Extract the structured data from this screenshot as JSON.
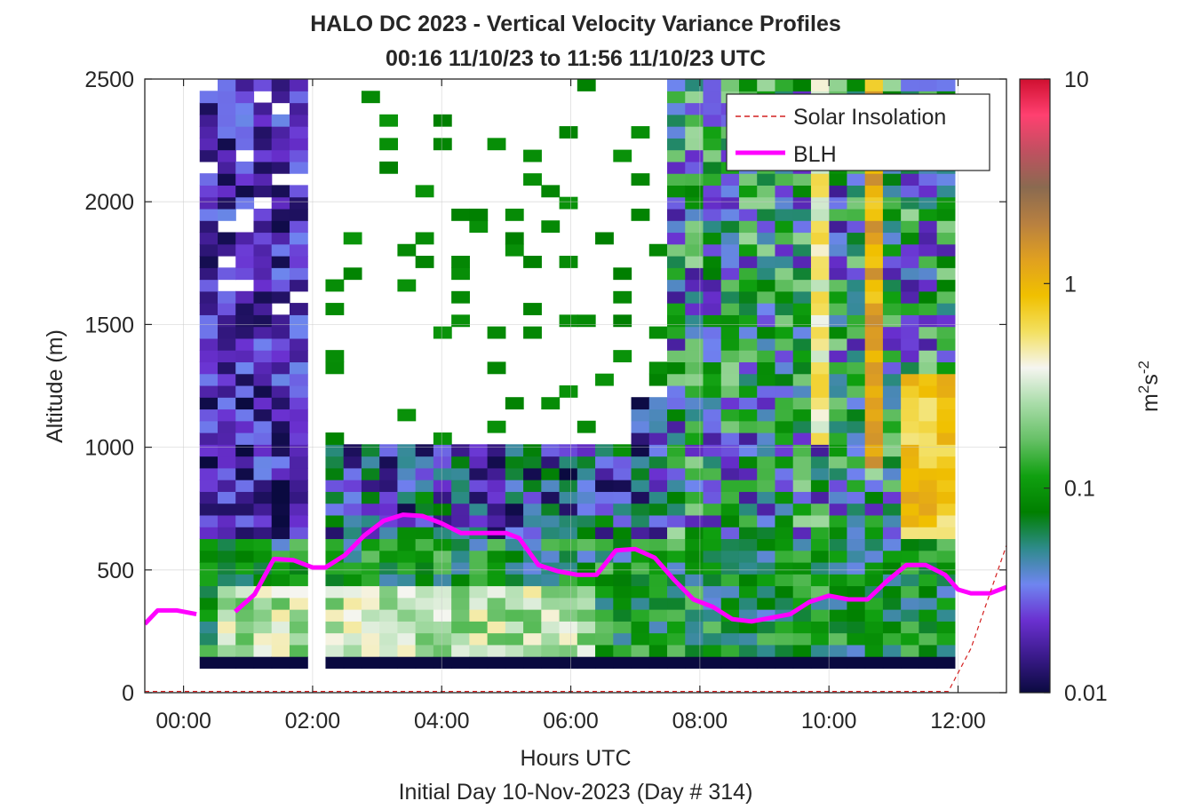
{
  "chart_data": {
    "type": "heatmap",
    "title": "HALO DC 2023 - Vertical Velocity Variance Profiles",
    "subtitle": "00:16 11/10/23 to 11:56 11/10/23  UTC",
    "xlabel": "Hours UTC",
    "xlabel2": "Initial Day 10-Nov-2023 (Day # 314)",
    "ylabel": "Altitude (m)",
    "xlim_hours": [
      -0.6,
      12.75
    ],
    "ylim": [
      0,
      2500
    ],
    "x_ticks": [
      0,
      2,
      4,
      6,
      8,
      10,
      12
    ],
    "x_tick_labels": [
      "00:00",
      "02:00",
      "04:00",
      "06:00",
      "08:00",
      "10:00",
      "12:00"
    ],
    "y_ticks": [
      0,
      500,
      1000,
      1500,
      2000,
      2500
    ],
    "y_tick_labels": [
      "0",
      "500",
      "1000",
      "1500",
      "2000",
      "2500"
    ],
    "grid": true,
    "colorbar": {
      "label": "m²s⁻²",
      "scale": "log",
      "range": [
        0.01,
        10
      ],
      "tick_values": [
        0.01,
        0.1,
        1,
        10
      ],
      "tick_labels": [
        "0.01",
        "0.1",
        "1",
        "10"
      ],
      "colors": [
        "#0a0a40",
        "#3a1a8a",
        "#6a30d0",
        "#6f85f0",
        "#2e8b8b",
        "#007f00",
        "#10a010",
        "#66c066",
        "#a8dca8",
        "#f5f5f0",
        "#f3e060",
        "#f0c000",
        "#e0a020",
        "#b88040",
        "#8a6a50",
        "#c05060",
        "#ff4070",
        "#d01030"
      ]
    },
    "legend": {
      "placement": "top-right",
      "entries": [
        {
          "label": "Solar Insolation",
          "color": "#d42020",
          "style": "dashed"
        },
        {
          "label": "BLH",
          "color": "#ff00ff",
          "style": "solid"
        }
      ]
    },
    "series": [
      {
        "name": "BLH",
        "color": "#ff00ff",
        "x": [
          -0.6,
          -0.4,
          -0.1,
          0.2,
          0.5,
          0.8,
          1.1,
          1.4,
          1.7,
          2.0,
          2.2,
          2.5,
          2.8,
          3.1,
          3.4,
          3.7,
          4.0,
          4.3,
          4.7,
          5.0,
          5.2,
          5.5,
          5.8,
          6.1,
          6.4,
          6.7,
          7.0,
          7.3,
          7.6,
          7.9,
          8.2,
          8.5,
          8.8,
          9.1,
          9.4,
          9.7,
          10.0,
          10.3,
          10.6,
          10.9,
          11.2,
          11.5,
          11.8,
          12.0,
          12.2,
          12.5,
          12.75
        ],
        "y": [
          280,
          335,
          335,
          320,
          null,
          330,
          400,
          545,
          540,
          510,
          510,
          560,
          640,
          700,
          725,
          720,
          690,
          650,
          650,
          650,
          630,
          520,
          495,
          480,
          480,
          580,
          585,
          550,
          460,
          380,
          350,
          300,
          290,
          305,
          320,
          370,
          395,
          380,
          380,
          455,
          520,
          520,
          480,
          420,
          405,
          405,
          430
        ]
      },
      {
        "name": "Solar Insolation",
        "color": "#d42020",
        "x": [
          -0.6,
          11.85,
          12.2,
          12.75
        ],
        "y": [
          5,
          5,
          180,
          600
        ]
      }
    ],
    "heatmap_extent": {
      "x": [
        0.25,
        11.95
      ],
      "y": [
        100,
        2500
      ],
      "columns": 42,
      "rows": 50
    },
    "data_gaps": {
      "white_region": "no data between roughly 02:10 and 07:40 above about 1000 m",
      "missing_columns_hours": [
        [
          2.0,
          2.3
        ]
      ]
    }
  }
}
